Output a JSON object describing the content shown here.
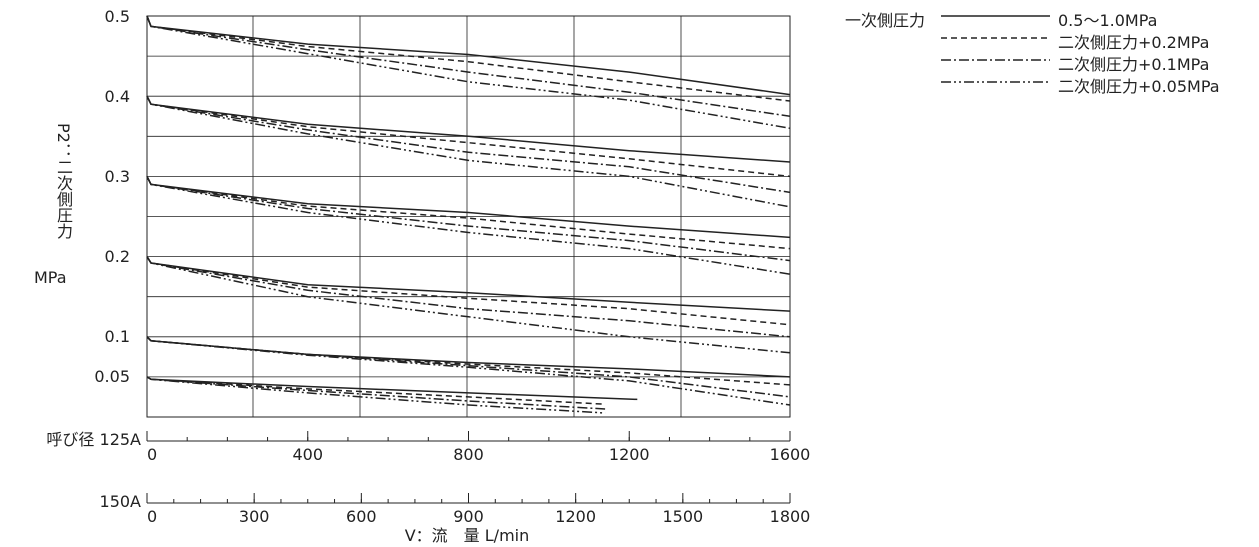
{
  "chart_data": {
    "type": "line",
    "ylabel": "P2：二次側圧力",
    "yunit": "MPa",
    "xlabel": "V：流　量 L/min",
    "yticks": [
      "0.5",
      "0.4",
      "0.3",
      "0.2",
      "0.1",
      "0.05"
    ],
    "ylim": [
      0,
      0.5
    ],
    "x_axis_125A": {
      "label": "呼び径 125A",
      "ticks": [
        "0",
        "400",
        "800",
        "1200",
        "1600"
      ],
      "range": [
        0,
        1600
      ]
    },
    "x_axis_150A": {
      "label": "150A",
      "ticks": [
        "0",
        "300",
        "600",
        "900",
        "1200",
        "1500",
        "1800"
      ],
      "range": [
        0,
        1800
      ]
    },
    "legend": {
      "title": "一次側圧力",
      "entries": [
        {
          "label": "0.5〜1.0MPa",
          "dash": "solid"
        },
        {
          "label": "二次側圧力+0.2MPa",
          "dash": "dashed"
        },
        {
          "label": "二次側圧力+0.1MPa",
          "dash": "dashdot"
        },
        {
          "label": "二次側圧力+0.05MPa",
          "dash": "dashdotdot"
        }
      ]
    },
    "groups": [
      {
        "set_pressure": 0.5,
        "series": [
          {
            "dash": "solid",
            "points": [
              [
                0,
                0.5
              ],
              [
                10,
                0.487
              ],
              [
                400,
                0.465
              ],
              [
                800,
                0.452
              ],
              [
                1200,
                0.43
              ],
              [
                1600,
                0.402
              ]
            ]
          },
          {
            "dash": "dashed",
            "points": [
              [
                0,
                0.5
              ],
              [
                10,
                0.487
              ],
              [
                400,
                0.462
              ],
              [
                800,
                0.443
              ],
              [
                1200,
                0.418
              ],
              [
                1600,
                0.394
              ]
            ]
          },
          {
            "dash": "dashdot",
            "points": [
              [
                0,
                0.5
              ],
              [
                10,
                0.487
              ],
              [
                400,
                0.458
              ],
              [
                800,
                0.43
              ],
              [
                1200,
                0.405
              ],
              [
                1600,
                0.375
              ]
            ]
          },
          {
            "dash": "dashdotdot",
            "points": [
              [
                0,
                0.5
              ],
              [
                10,
                0.487
              ],
              [
                400,
                0.453
              ],
              [
                800,
                0.418
              ],
              [
                1200,
                0.395
              ],
              [
                1600,
                0.36
              ]
            ]
          }
        ]
      },
      {
        "set_pressure": 0.4,
        "series": [
          {
            "dash": "solid",
            "points": [
              [
                0,
                0.4
              ],
              [
                10,
                0.39
              ],
              [
                400,
                0.365
              ],
              [
                800,
                0.35
              ],
              [
                1200,
                0.332
              ],
              [
                1600,
                0.318
              ]
            ]
          },
          {
            "dash": "dashed",
            "points": [
              [
                0,
                0.4
              ],
              [
                10,
                0.39
              ],
              [
                400,
                0.362
              ],
              [
                800,
                0.342
              ],
              [
                1200,
                0.322
              ],
              [
                1600,
                0.3
              ]
            ]
          },
          {
            "dash": "dashdot",
            "points": [
              [
                0,
                0.4
              ],
              [
                10,
                0.39
              ],
              [
                400,
                0.358
              ],
              [
                800,
                0.33
              ],
              [
                1200,
                0.312
              ],
              [
                1600,
                0.28
              ]
            ]
          },
          {
            "dash": "dashdotdot",
            "points": [
              [
                0,
                0.4
              ],
              [
                10,
                0.39
              ],
              [
                400,
                0.353
              ],
              [
                800,
                0.32
              ],
              [
                1200,
                0.3
              ],
              [
                1600,
                0.262
              ]
            ]
          }
        ]
      },
      {
        "set_pressure": 0.3,
        "series": [
          {
            "dash": "solid",
            "points": [
              [
                0,
                0.3
              ],
              [
                10,
                0.29
              ],
              [
                400,
                0.266
              ],
              [
                800,
                0.255
              ],
              [
                1200,
                0.238
              ],
              [
                1600,
                0.224
              ]
            ]
          },
          {
            "dash": "dashed",
            "points": [
              [
                0,
                0.3
              ],
              [
                10,
                0.29
              ],
              [
                400,
                0.263
              ],
              [
                800,
                0.248
              ],
              [
                1200,
                0.228
              ],
              [
                1600,
                0.21
              ]
            ]
          },
          {
            "dash": "dashdot",
            "points": [
              [
                0,
                0.3
              ],
              [
                10,
                0.29
              ],
              [
                400,
                0.26
              ],
              [
                800,
                0.238
              ],
              [
                1200,
                0.22
              ],
              [
                1600,
                0.195
              ]
            ]
          },
          {
            "dash": "dashdotdot",
            "points": [
              [
                0,
                0.3
              ],
              [
                10,
                0.29
              ],
              [
                400,
                0.255
              ],
              [
                800,
                0.23
              ],
              [
                1200,
                0.21
              ],
              [
                1600,
                0.178
              ]
            ]
          }
        ]
      },
      {
        "set_pressure": 0.2,
        "series": [
          {
            "dash": "solid",
            "points": [
              [
                0,
                0.2
              ],
              [
                10,
                0.192
              ],
              [
                400,
                0.165
              ],
              [
                800,
                0.155
              ],
              [
                1200,
                0.143
              ],
              [
                1600,
                0.132
              ]
            ]
          },
          {
            "dash": "dashed",
            "points": [
              [
                0,
                0.2
              ],
              [
                10,
                0.192
              ],
              [
                400,
                0.162
              ],
              [
                800,
                0.148
              ],
              [
                1200,
                0.135
              ],
              [
                1600,
                0.115
              ]
            ]
          },
          {
            "dash": "dashdot",
            "points": [
              [
                0,
                0.2
              ],
              [
                10,
                0.192
              ],
              [
                400,
                0.158
              ],
              [
                800,
                0.135
              ],
              [
                1200,
                0.12
              ],
              [
                1600,
                0.1
              ]
            ]
          },
          {
            "dash": "dashdotdot",
            "points": [
              [
                0,
                0.2
              ],
              [
                10,
                0.192
              ],
              [
                400,
                0.15
              ],
              [
                800,
                0.125
              ],
              [
                1200,
                0.1
              ],
              [
                1600,
                0.08
              ]
            ]
          }
        ]
      },
      {
        "set_pressure": 0.1,
        "series": [
          {
            "dash": "solid",
            "points": [
              [
                0,
                0.1
              ],
              [
                10,
                0.095
              ],
              [
                400,
                0.078
              ],
              [
                800,
                0.068
              ],
              [
                1200,
                0.06
              ],
              [
                1600,
                0.05
              ]
            ]
          },
          {
            "dash": "dashed",
            "points": [
              [
                0,
                0.1
              ],
              [
                10,
                0.095
              ],
              [
                400,
                0.078
              ],
              [
                800,
                0.066
              ],
              [
                1200,
                0.055
              ],
              [
                1600,
                0.04
              ]
            ]
          },
          {
            "dash": "dashdot",
            "points": [
              [
                0,
                0.1
              ],
              [
                10,
                0.095
              ],
              [
                400,
                0.078
              ],
              [
                800,
                0.064
              ],
              [
                1200,
                0.05
              ],
              [
                1600,
                0.025
              ]
            ]
          },
          {
            "dash": "dashdotdot",
            "points": [
              [
                0,
                0.1
              ],
              [
                10,
                0.095
              ],
              [
                400,
                0.077
              ],
              [
                800,
                0.062
              ],
              [
                1200,
                0.045
              ],
              [
                1600,
                0.015
              ]
            ]
          }
        ]
      },
      {
        "set_pressure": 0.05,
        "series": [
          {
            "dash": "solid",
            "points": [
              [
                0,
                0.05
              ],
              [
                10,
                0.047
              ],
              [
                400,
                0.038
              ],
              [
                800,
                0.03
              ],
              [
                1220,
                0.022
              ]
            ]
          },
          {
            "dash": "dashed",
            "points": [
              [
                0,
                0.05
              ],
              [
                10,
                0.047
              ],
              [
                400,
                0.035
              ],
              [
                800,
                0.025
              ],
              [
                1140,
                0.016
              ]
            ]
          },
          {
            "dash": "dashdot",
            "points": [
              [
                0,
                0.05
              ],
              [
                10,
                0.047
              ],
              [
                400,
                0.033
              ],
              [
                800,
                0.02
              ],
              [
                1140,
                0.01
              ]
            ]
          },
          {
            "dash": "dashdotdot",
            "points": [
              [
                0,
                0.05
              ],
              [
                10,
                0.047
              ],
              [
                400,
                0.03
              ],
              [
                800,
                0.015
              ],
              [
                1140,
                0.005
              ]
            ]
          }
        ]
      }
    ]
  }
}
